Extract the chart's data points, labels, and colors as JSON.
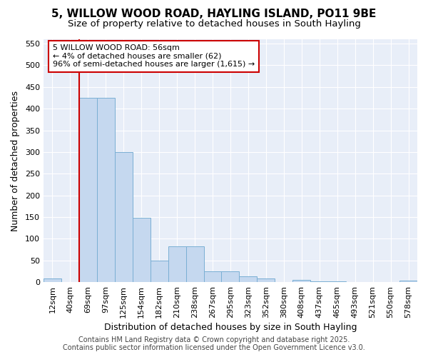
{
  "title_line1": "5, WILLOW WOOD ROAD, HAYLING ISLAND, PO11 9BE",
  "title_line2": "Size of property relative to detached houses in South Hayling",
  "xlabel": "Distribution of detached houses by size in South Hayling",
  "ylabel": "Number of detached properties",
  "categories": [
    "12sqm",
    "40sqm",
    "69sqm",
    "97sqm",
    "125sqm",
    "154sqm",
    "182sqm",
    "210sqm",
    "238sqm",
    "267sqm",
    "295sqm",
    "323sqm",
    "352sqm",
    "380sqm",
    "408sqm",
    "437sqm",
    "465sqm",
    "493sqm",
    "521sqm",
    "550sqm",
    "578sqm"
  ],
  "values": [
    8,
    0,
    425,
    425,
    300,
    148,
    50,
    82,
    82,
    25,
    25,
    13,
    8,
    0,
    5,
    2,
    2,
    0,
    0,
    0,
    3
  ],
  "bar_color": "#c5d8ef",
  "bar_edge_color": "#7aafd4",
  "vline_x": 1.5,
  "vline_color": "#cc0000",
  "ylim": [
    0,
    560
  ],
  "yticks": [
    0,
    50,
    100,
    150,
    200,
    250,
    300,
    350,
    400,
    450,
    500,
    550
  ],
  "annotation_box_text": "5 WILLOW WOOD ROAD: 56sqm\n← 4% of detached houses are smaller (62)\n96% of semi-detached houses are larger (1,615) →",
  "annotation_box_color": "#ffffff",
  "annotation_box_edge_color": "#cc0000",
  "bg_color": "#ffffff",
  "plot_bg_color": "#e8eef8",
  "footer_text": "Contains HM Land Registry data © Crown copyright and database right 2025.\nContains public sector information licensed under the Open Government Licence v3.0.",
  "grid_color": "#ffffff",
  "title_fontsize": 11,
  "subtitle_fontsize": 9.5,
  "tick_fontsize": 8,
  "label_fontsize": 9,
  "footer_fontsize": 7
}
